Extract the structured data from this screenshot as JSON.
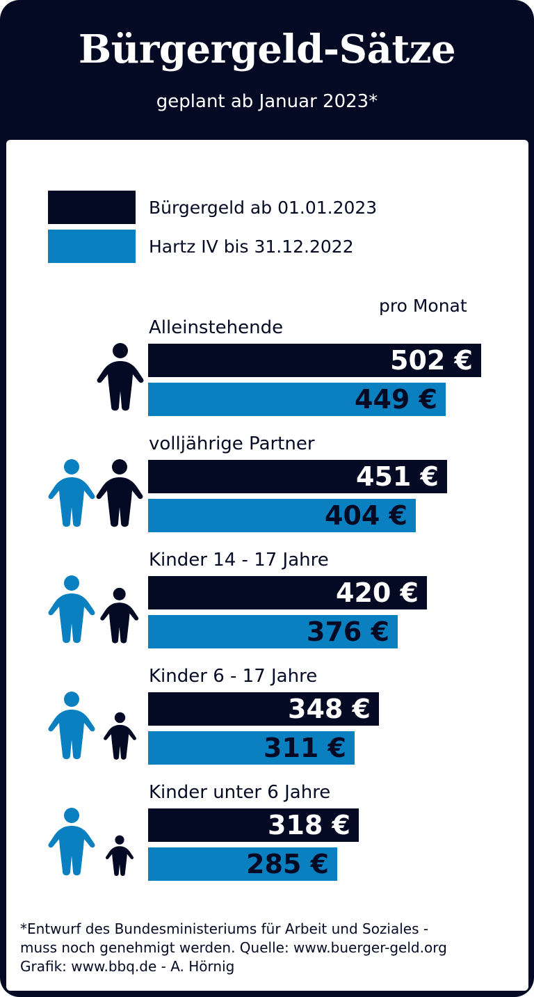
{
  "header": {
    "title": "Bürgergeld-Sätze",
    "subtitle": "geplant ab Januar 2023*"
  },
  "legend": [
    {
      "label": "Bürgergeld ab 01.01.2023",
      "color": "#050a24"
    },
    {
      "label": "Hartz IV bis 31.12.2022",
      "color": "#0a80c0"
    }
  ],
  "unit_label": "pro Monat",
  "colors": {
    "dark": "#050a24",
    "blue": "#0a80c0",
    "panel": "#ffffff"
  },
  "chart_data": {
    "type": "bar",
    "orientation": "horizontal",
    "categories": [
      "Alleinstehende",
      "volljährige Partner",
      "Kinder 14 - 17 Jahre",
      "Kinder 6 - 17 Jahre",
      "Kinder unter 6 Jahre"
    ],
    "series": [
      {
        "name": "Bürgergeld ab 01.01.2023",
        "values": [
          502,
          451,
          420,
          348,
          318
        ],
        "labels": [
          "502 €",
          "451 €",
          "420 €",
          "348 €",
          "318 €"
        ]
      },
      {
        "name": "Hartz IV bis 31.12.2022",
        "values": [
          449,
          404,
          376,
          311,
          285
        ],
        "labels": [
          "449 €",
          "404 €",
          "376 €",
          "311 €",
          "285 €"
        ]
      }
    ],
    "icons": [
      [
        {
          "name": "adult-person-icon",
          "color": "dark"
        }
      ],
      [
        {
          "name": "adult-person-icon",
          "color": "blue"
        },
        {
          "name": "adult-person-icon",
          "color": "dark"
        }
      ],
      [
        {
          "name": "adult-person-icon",
          "color": "blue"
        },
        {
          "name": "teen-person-icon",
          "color": "dark"
        }
      ],
      [
        {
          "name": "adult-person-icon",
          "color": "blue"
        },
        {
          "name": "child-person-icon",
          "color": "dark"
        }
      ],
      [
        {
          "name": "adult-person-icon",
          "color": "blue"
        },
        {
          "name": "small-child-person-icon",
          "color": "dark"
        }
      ]
    ]
  },
  "footnote": [
    "*Entwurf des Bundesministeriums für Arbeit und Soziales -",
    "muss noch genehmigt werden. Quelle: www.buerger-geld.org",
    "Grafik: www.bbq.de - A. Hörnig"
  ]
}
